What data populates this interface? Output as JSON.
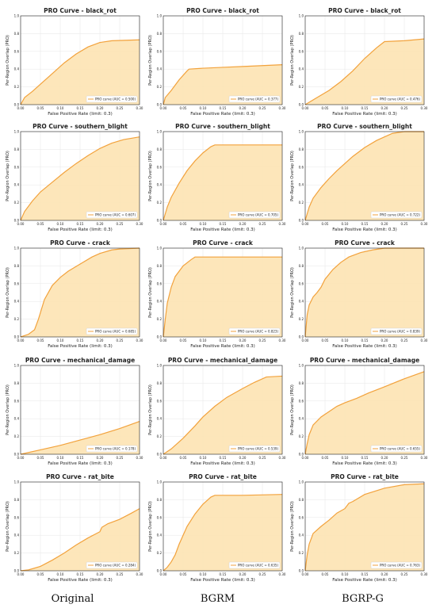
{
  "colors": {
    "curve": "#f2a23c",
    "fill": "#fde3b3",
    "grid": "#e6e6e6",
    "axis": "#222222"
  },
  "axes": {
    "xlabel": "False Positive Rate (limit: 0.3)",
    "ylabel": "Per-Region Overlap (PRO)",
    "xticks": [
      "0.00",
      "0.05",
      "0.10",
      "0.15",
      "0.20",
      "0.25",
      "0.30"
    ],
    "yticks": [
      "0.0",
      "0.2",
      "0.4",
      "0.6",
      "0.8",
      "1.0"
    ]
  },
  "columns": [
    "Original",
    "BGRM",
    "BGRP-G"
  ],
  "chart_data": [
    {
      "type": "area",
      "title": "PRO Curve - black_rot",
      "legend": "PRO curve (AUC = 0.500)",
      "x": [
        0,
        0.01,
        0.03,
        0.05,
        0.08,
        0.11,
        0.14,
        0.17,
        0.2,
        0.23,
        0.3
      ],
      "y": [
        0,
        0.08,
        0.15,
        0.23,
        0.35,
        0.47,
        0.57,
        0.65,
        0.7,
        0.72,
        0.73
      ],
      "xlim": [
        0,
        0.3
      ],
      "ylim": [
        0,
        1
      ]
    },
    {
      "type": "area",
      "title": "PRO Curve - black_rot",
      "legend": "PRO curve (AUC = 0.377)",
      "x": [
        0,
        0.005,
        0.02,
        0.04,
        0.06,
        0.065,
        0.1,
        0.15,
        0.2,
        0.25,
        0.3
      ],
      "y": [
        0,
        0.08,
        0.16,
        0.28,
        0.38,
        0.4,
        0.41,
        0.42,
        0.43,
        0.44,
        0.45
      ],
      "xlim": [
        0,
        0.3
      ],
      "ylim": [
        0,
        1
      ]
    },
    {
      "type": "area",
      "title": "PRO Curve - black_rot",
      "legend": "PRO curve (AUC = 0.476)",
      "x": [
        0,
        0.03,
        0.06,
        0.09,
        0.12,
        0.15,
        0.18,
        0.2,
        0.25,
        0.3
      ],
      "y": [
        0,
        0.08,
        0.16,
        0.26,
        0.38,
        0.52,
        0.64,
        0.71,
        0.72,
        0.74
      ],
      "xlim": [
        0,
        0.3
      ],
      "ylim": [
        0,
        1
      ]
    },
    {
      "type": "area",
      "title": "PRO Curve - southern_blight",
      "legend": "PRO curve (AUC = 0.607)",
      "x": [
        0,
        0.01,
        0.03,
        0.05,
        0.08,
        0.11,
        0.14,
        0.17,
        0.2,
        0.23,
        0.26,
        0.3
      ],
      "y": [
        0,
        0.1,
        0.22,
        0.32,
        0.43,
        0.54,
        0.64,
        0.73,
        0.81,
        0.87,
        0.91,
        0.94
      ],
      "xlim": [
        0,
        0.3
      ],
      "ylim": [
        0,
        1
      ]
    },
    {
      "type": "area",
      "title": "PRO Curve - southern_blight",
      "legend": "PRO curve (AUC = 0.705)",
      "x": [
        0,
        0.01,
        0.02,
        0.04,
        0.06,
        0.08,
        0.1,
        0.12,
        0.13,
        0.2,
        0.3
      ],
      "y": [
        0,
        0.15,
        0.26,
        0.42,
        0.56,
        0.67,
        0.76,
        0.83,
        0.85,
        0.85,
        0.85
      ],
      "xlim": [
        0,
        0.3
      ],
      "ylim": [
        0,
        1
      ]
    },
    {
      "type": "area",
      "title": "PRO Curve - southern_blight",
      "legend": "PRO curve (AUC = 0.722)",
      "x": [
        0,
        0.01,
        0.02,
        0.04,
        0.06,
        0.08,
        0.1,
        0.12,
        0.15,
        0.18,
        0.2,
        0.22,
        0.25,
        0.3
      ],
      "y": [
        0,
        0.15,
        0.25,
        0.37,
        0.47,
        0.56,
        0.64,
        0.72,
        0.82,
        0.9,
        0.94,
        0.98,
        1.0,
        1.0
      ],
      "xlim": [
        0,
        0.3
      ],
      "ylim": [
        0,
        1
      ]
    },
    {
      "type": "area",
      "title": "PRO Curve - crack",
      "legend": "PRO curve (AUC = 0.685)",
      "x": [
        0,
        0.02,
        0.035,
        0.045,
        0.06,
        0.08,
        0.1,
        0.12,
        0.15,
        0.18,
        0.2,
        0.23,
        0.25,
        0.3
      ],
      "y": [
        0,
        0.03,
        0.08,
        0.2,
        0.42,
        0.58,
        0.67,
        0.74,
        0.82,
        0.9,
        0.94,
        0.98,
        0.99,
        1.0
      ],
      "xlim": [
        0,
        0.3
      ],
      "ylim": [
        0,
        1
      ]
    },
    {
      "type": "area",
      "title": "PRO Curve - crack",
      "legend": "PRO curve (AUC = 0.823)",
      "x": [
        0,
        0.005,
        0.01,
        0.02,
        0.03,
        0.05,
        0.07,
        0.08,
        0.15,
        0.3
      ],
      "y": [
        0,
        0.2,
        0.38,
        0.56,
        0.68,
        0.8,
        0.87,
        0.9,
        0.9,
        0.9
      ],
      "xlim": [
        0,
        0.3
      ],
      "ylim": [
        0,
        1
      ]
    },
    {
      "type": "area",
      "title": "PRO Curve - crack",
      "legend": "PRO curve (AUC = 0.839)",
      "x": [
        0,
        0.005,
        0.01,
        0.02,
        0.03,
        0.04,
        0.05,
        0.07,
        0.09,
        0.11,
        0.14,
        0.17,
        0.2,
        0.3
      ],
      "y": [
        0,
        0.25,
        0.36,
        0.45,
        0.5,
        0.56,
        0.65,
        0.76,
        0.84,
        0.9,
        0.95,
        0.98,
        1.0,
        1.0
      ],
      "xlim": [
        0,
        0.3
      ],
      "ylim": [
        0,
        1
      ]
    },
    {
      "type": "area",
      "title": "PRO Curve - mechanical_damage",
      "legend": "PRO curve (AUC = 0.178)",
      "x": [
        0,
        0.05,
        0.1,
        0.15,
        0.2,
        0.25,
        0.3
      ],
      "y": [
        0,
        0.05,
        0.1,
        0.16,
        0.22,
        0.29,
        0.37
      ],
      "xlim": [
        0,
        0.3
      ],
      "ylim": [
        0,
        1
      ]
    },
    {
      "type": "area",
      "title": "PRO Curve - mechanical_damage",
      "legend": "PRO curve (AUC = 0.539)",
      "x": [
        0,
        0.02,
        0.05,
        0.08,
        0.1,
        0.13,
        0.16,
        0.2,
        0.23,
        0.26,
        0.3
      ],
      "y": [
        0,
        0.06,
        0.18,
        0.32,
        0.42,
        0.54,
        0.64,
        0.74,
        0.81,
        0.87,
        0.88
      ],
      "xlim": [
        0,
        0.3
      ],
      "ylim": [
        0,
        1
      ]
    },
    {
      "type": "area",
      "title": "PRO Curve - mechanical_damage",
      "legend": "PRO curve (AUC = 0.655)",
      "x": [
        0,
        0.005,
        0.01,
        0.02,
        0.04,
        0.06,
        0.08,
        0.1,
        0.13,
        0.16,
        0.2,
        0.25,
        0.3
      ],
      "y": [
        0,
        0.12,
        0.22,
        0.33,
        0.42,
        0.48,
        0.54,
        0.58,
        0.63,
        0.69,
        0.76,
        0.85,
        0.93
      ],
      "xlim": [
        0,
        0.3
      ],
      "ylim": [
        0,
        1
      ]
    },
    {
      "type": "area",
      "title": "PRO Curve - rat_bite",
      "legend": "PRO curve (AUC = 0.284)",
      "x": [
        0,
        0.02,
        0.05,
        0.08,
        0.11,
        0.14,
        0.17,
        0.2,
        0.205,
        0.22,
        0.25,
        0.28,
        0.3
      ],
      "y": [
        0,
        0.01,
        0.05,
        0.12,
        0.2,
        0.29,
        0.37,
        0.44,
        0.49,
        0.53,
        0.58,
        0.65,
        0.7
      ],
      "xlim": [
        0,
        0.3
      ],
      "ylim": [
        0,
        1
      ]
    },
    {
      "type": "area",
      "title": "PRO Curve - rat_bite",
      "legend": "PRO curve (AUC = 0.635)",
      "x": [
        0,
        0.01,
        0.02,
        0.03,
        0.04,
        0.06,
        0.08,
        0.1,
        0.12,
        0.13,
        0.2,
        0.3
      ],
      "y": [
        0,
        0.04,
        0.1,
        0.18,
        0.3,
        0.5,
        0.64,
        0.75,
        0.83,
        0.85,
        0.85,
        0.86
      ],
      "xlim": [
        0,
        0.3
      ],
      "ylim": [
        0,
        1
      ]
    },
    {
      "type": "area",
      "title": "PRO Curve - rat_bite",
      "legend": "PRO curve (AUC = 0.763)",
      "x": [
        0,
        0.005,
        0.01,
        0.02,
        0.04,
        0.06,
        0.08,
        0.1,
        0.11,
        0.12,
        0.15,
        0.2,
        0.25,
        0.3
      ],
      "y": [
        0,
        0.18,
        0.3,
        0.42,
        0.5,
        0.57,
        0.65,
        0.7,
        0.76,
        0.78,
        0.86,
        0.93,
        0.97,
        0.98
      ],
      "xlim": [
        0,
        0.3
      ],
      "ylim": [
        0,
        1
      ]
    }
  ]
}
